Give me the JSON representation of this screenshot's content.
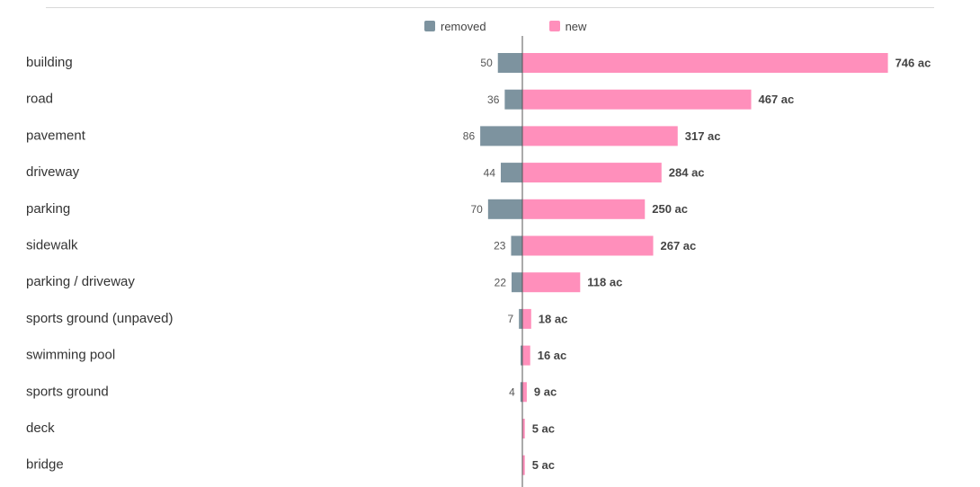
{
  "legend": {
    "removed": "removed",
    "new": "new"
  },
  "colors": {
    "removed": "#7d939f",
    "new": "#ff8fbb",
    "axis": "#555555",
    "rule": "#d9d9d9"
  },
  "chart_data": {
    "type": "bar",
    "orientation": "horizontal-diverging",
    "title": "",
    "xlabel": "",
    "ylabel": "",
    "unit": "ac",
    "grid": false,
    "legend_position": "top-center",
    "categories": [
      "building",
      "road",
      "pavement",
      "driveway",
      "parking",
      "sidewalk",
      "parking / driveway",
      "sports ground (unpaved)",
      "swimming pool",
      "sports ground",
      "deck",
      "bridge"
    ],
    "series": [
      {
        "name": "removed",
        "values": [
          50,
          36,
          86,
          44,
          70,
          23,
          22,
          7,
          1,
          4,
          0,
          0
        ],
        "labels": [
          "50",
          "36",
          "86",
          "44",
          "70",
          "23",
          "22",
          "7",
          "",
          "4",
          "",
          ""
        ]
      },
      {
        "name": "new",
        "values": [
          746,
          467,
          317,
          284,
          250,
          267,
          118,
          18,
          16,
          9,
          5,
          5
        ],
        "labels": [
          "746 ac",
          "467 ac",
          "317 ac",
          "284 ac",
          "250 ac",
          "267 ac",
          "118 ac",
          "18 ac",
          "16 ac",
          "9 ac",
          "5 ac",
          "5 ac"
        ]
      }
    ]
  }
}
